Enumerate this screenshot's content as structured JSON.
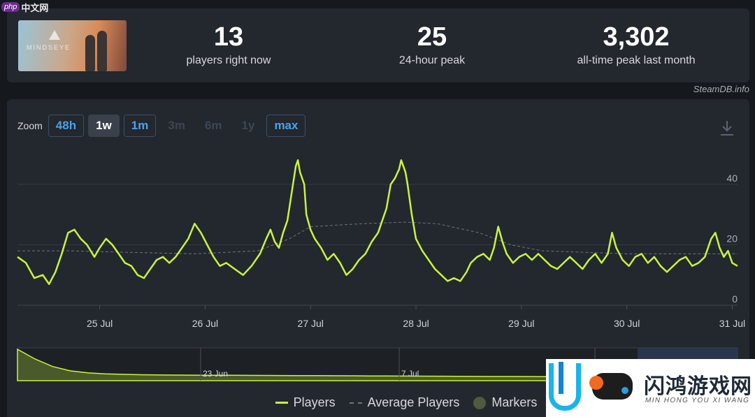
{
  "watermark_top": {
    "badge": "php",
    "text": "中文网"
  },
  "watermark_bottom": {
    "brand": "闪鸿游戏网",
    "sub": "MIN HONG YOU XI WANG"
  },
  "header": {
    "game_logo_text": "MINDSEYE",
    "stats": [
      {
        "value": "13",
        "label": "players right now"
      },
      {
        "value": "25",
        "label": "24-hour peak"
      },
      {
        "value": "3,302",
        "label": "all-time peak last month"
      }
    ],
    "credit": "SteamDB.info"
  },
  "zoom": {
    "label": "Zoom",
    "buttons": [
      {
        "label": "48h",
        "state": "enabled"
      },
      {
        "label": "1w",
        "state": "active"
      },
      {
        "label": "1m",
        "state": "enabled"
      },
      {
        "label": "3m",
        "state": "disabled"
      },
      {
        "label": "6m",
        "state": "disabled"
      },
      {
        "label": "1y",
        "state": "disabled"
      },
      {
        "label": "max",
        "state": "enabled"
      }
    ],
    "download_icon": "download-icon"
  },
  "chart_data": {
    "type": "line",
    "y_ticks": [
      0,
      20,
      40
    ],
    "ylim": [
      0,
      52
    ],
    "x_ticks": [
      "25 Jul",
      "26 Jul",
      "27 Jul",
      "28 Jul",
      "29 Jul",
      "30 Jul",
      "31 Jul"
    ],
    "x_tick_days": [
      1,
      2,
      3,
      4,
      5,
      6,
      7
    ],
    "xlim_days": [
      0.22,
      7.05
    ],
    "grid": true,
    "series": [
      {
        "name": "Players",
        "color": "#c8f53b",
        "points": [
          [
            0.22,
            16
          ],
          [
            0.3,
            14
          ],
          [
            0.38,
            9
          ],
          [
            0.46,
            10
          ],
          [
            0.52,
            7
          ],
          [
            0.58,
            11
          ],
          [
            0.64,
            17
          ],
          [
            0.7,
            24
          ],
          [
            0.76,
            25
          ],
          [
            0.82,
            22
          ],
          [
            0.88,
            20
          ],
          [
            0.95,
            16
          ],
          [
            1.0,
            19
          ],
          [
            1.06,
            22
          ],
          [
            1.12,
            20
          ],
          [
            1.18,
            17
          ],
          [
            1.24,
            14
          ],
          [
            1.3,
            13
          ],
          [
            1.36,
            10
          ],
          [
            1.42,
            9
          ],
          [
            1.48,
            12
          ],
          [
            1.54,
            15
          ],
          [
            1.6,
            16
          ],
          [
            1.66,
            14
          ],
          [
            1.72,
            16
          ],
          [
            1.78,
            19
          ],
          [
            1.84,
            22
          ],
          [
            1.9,
            27
          ],
          [
            1.96,
            24
          ],
          [
            2.02,
            20
          ],
          [
            2.08,
            16
          ],
          [
            2.14,
            13
          ],
          [
            2.2,
            14
          ],
          [
            2.28,
            12
          ],
          [
            2.36,
            10
          ],
          [
            2.44,
            13
          ],
          [
            2.52,
            17
          ],
          [
            2.58,
            22
          ],
          [
            2.62,
            25
          ],
          [
            2.66,
            21
          ],
          [
            2.7,
            19
          ],
          [
            2.74,
            24
          ],
          [
            2.78,
            28
          ],
          [
            2.82,
            37
          ],
          [
            2.86,
            46
          ],
          [
            2.88,
            48
          ],
          [
            2.9,
            44
          ],
          [
            2.94,
            40
          ],
          [
            2.96,
            30
          ],
          [
            3.0,
            25
          ],
          [
            3.04,
            22
          ],
          [
            3.1,
            19
          ],
          [
            3.16,
            15
          ],
          [
            3.22,
            17
          ],
          [
            3.28,
            14
          ],
          [
            3.34,
            10
          ],
          [
            3.4,
            12
          ],
          [
            3.46,
            15
          ],
          [
            3.52,
            17
          ],
          [
            3.58,
            21
          ],
          [
            3.64,
            24
          ],
          [
            3.68,
            28
          ],
          [
            3.72,
            32
          ],
          [
            3.76,
            40
          ],
          [
            3.8,
            42
          ],
          [
            3.84,
            45
          ],
          [
            3.86,
            48
          ],
          [
            3.9,
            44
          ],
          [
            3.92,
            40
          ],
          [
            3.96,
            30
          ],
          [
            4.0,
            22
          ],
          [
            4.06,
            18
          ],
          [
            4.12,
            15
          ],
          [
            4.18,
            12
          ],
          [
            4.24,
            10
          ],
          [
            4.3,
            8
          ],
          [
            4.36,
            9
          ],
          [
            4.42,
            8
          ],
          [
            4.48,
            11
          ],
          [
            4.52,
            14
          ],
          [
            4.58,
            16
          ],
          [
            4.64,
            17
          ],
          [
            4.7,
            15
          ],
          [
            4.74,
            19
          ],
          [
            4.78,
            26
          ],
          [
            4.82,
            21
          ],
          [
            4.86,
            17
          ],
          [
            4.92,
            14
          ],
          [
            4.98,
            16
          ],
          [
            5.04,
            17
          ],
          [
            5.1,
            15
          ],
          [
            5.16,
            17
          ],
          [
            5.22,
            15
          ],
          [
            5.28,
            13
          ],
          [
            5.34,
            12
          ],
          [
            5.4,
            14
          ],
          [
            5.46,
            16
          ],
          [
            5.52,
            14
          ],
          [
            5.58,
            12
          ],
          [
            5.64,
            15
          ],
          [
            5.7,
            17
          ],
          [
            5.76,
            14
          ],
          [
            5.82,
            17
          ],
          [
            5.86,
            24
          ],
          [
            5.9,
            19
          ],
          [
            5.96,
            15
          ],
          [
            6.02,
            13
          ],
          [
            6.08,
            16
          ],
          [
            6.14,
            17
          ],
          [
            6.2,
            14
          ],
          [
            6.26,
            16
          ],
          [
            6.32,
            13
          ],
          [
            6.38,
            11
          ],
          [
            6.44,
            13
          ],
          [
            6.5,
            15
          ],
          [
            6.56,
            16
          ],
          [
            6.62,
            13
          ],
          [
            6.68,
            14
          ],
          [
            6.74,
            16
          ],
          [
            6.8,
            22
          ],
          [
            6.84,
            24
          ],
          [
            6.88,
            19
          ],
          [
            6.92,
            16
          ],
          [
            6.96,
            18
          ],
          [
            7.0,
            14
          ],
          [
            7.05,
            13
          ]
        ]
      },
      {
        "name": "Average Players",
        "color": "#6d7480",
        "points": [
          [
            0.22,
            18
          ],
          [
            0.7,
            18
          ],
          [
            1.3,
            17.5
          ],
          [
            1.9,
            17
          ],
          [
            2.5,
            18
          ],
          [
            2.8,
            22
          ],
          [
            3.0,
            26
          ],
          [
            3.5,
            27
          ],
          [
            3.9,
            27.5
          ],
          [
            4.2,
            27
          ],
          [
            4.6,
            24
          ],
          [
            4.9,
            20
          ],
          [
            5.2,
            18
          ],
          [
            6.0,
            17
          ],
          [
            7.05,
            17
          ]
        ]
      }
    ]
  },
  "navigator": {
    "labels": [
      "23 Jun",
      "7 Jul"
    ],
    "values": [
      3302,
      1500,
      600,
      260,
      150,
      110,
      90,
      75,
      70,
      65,
      62,
      60,
      58,
      56,
      54,
      52,
      50,
      48,
      46,
      44,
      42,
      40,
      38,
      36,
      34,
      32,
      30,
      29,
      28,
      27,
      26,
      25,
      24,
      24,
      23,
      23,
      22,
      22,
      21,
      21,
      20,
      20
    ]
  },
  "legend": {
    "items": [
      {
        "label": "Players",
        "kind": "line"
      },
      {
        "label": "Average Players",
        "kind": "dash"
      },
      {
        "label": "Markers",
        "kind": "dot"
      }
    ]
  }
}
